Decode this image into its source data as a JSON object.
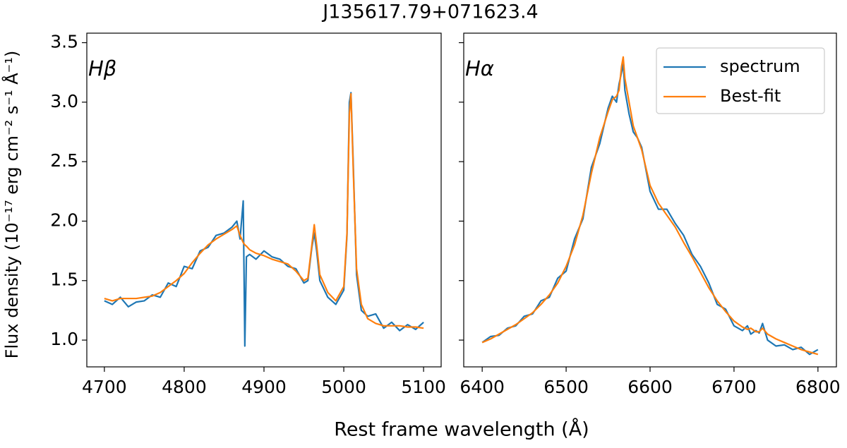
{
  "title": "J135617.79+071623.4",
  "x_label": "Rest frame wavelength (Å)",
  "y_label": "Flux density (10⁻¹⁷ erg cm⁻² s⁻¹ Å⁻¹)",
  "chart_data": [
    {
      "type": "line",
      "annotation": "Hβ",
      "x": [
        4700,
        4710,
        4720,
        4730,
        4740,
        4750,
        4760,
        4770,
        4780,
        4790,
        4800,
        4810,
        4820,
        4830,
        4840,
        4850,
        4860,
        4866,
        4870,
        4874,
        4876,
        4878,
        4882,
        4890,
        4900,
        4910,
        4920,
        4930,
        4940,
        4950,
        4955,
        4960,
        4963,
        4966,
        4970,
        4980,
        4990,
        5000,
        5004,
        5007,
        5009,
        5012,
        5016,
        5022,
        5030,
        5040,
        5050,
        5060,
        5070,
        5080,
        5090,
        5100
      ],
      "series": [
        {
          "name": "spectrum",
          "color": "#1f77b4",
          "values": [
            1.33,
            1.3,
            1.36,
            1.28,
            1.32,
            1.33,
            1.38,
            1.36,
            1.48,
            1.45,
            1.62,
            1.6,
            1.75,
            1.78,
            1.88,
            1.9,
            1.95,
            2.0,
            1.85,
            2.17,
            0.95,
            1.7,
            1.72,
            1.68,
            1.75,
            1.7,
            1.68,
            1.62,
            1.6,
            1.48,
            1.5,
            1.78,
            1.9,
            1.75,
            1.5,
            1.36,
            1.3,
            1.42,
            1.88,
            3.0,
            3.08,
            2.45,
            1.55,
            1.25,
            1.2,
            1.22,
            1.1,
            1.15,
            1.08,
            1.13,
            1.09,
            1.15
          ]
        },
        {
          "name": "Best-fit",
          "color": "#ff7f0e",
          "values": [
            1.35,
            1.33,
            1.35,
            1.35,
            1.35,
            1.36,
            1.37,
            1.4,
            1.45,
            1.5,
            1.56,
            1.65,
            1.73,
            1.8,
            1.85,
            1.89,
            1.93,
            1.96,
            1.88,
            1.82,
            1.8,
            1.79,
            1.76,
            1.73,
            1.71,
            1.68,
            1.66,
            1.64,
            1.58,
            1.5,
            1.52,
            1.8,
            1.97,
            1.8,
            1.55,
            1.4,
            1.33,
            1.45,
            1.9,
            2.9,
            3.07,
            2.4,
            1.6,
            1.3,
            1.18,
            1.14,
            1.12,
            1.12,
            1.12,
            1.11,
            1.11,
            1.1
          ]
        }
      ],
      "xlim": [
        4678,
        5122
      ],
      "xticks": [
        4700,
        4800,
        4900,
        5000,
        5100
      ],
      "ylim": [
        0.775,
        3.58
      ],
      "yticks": [
        {
          "value": 1,
          "label": "1.0"
        },
        1.5,
        {
          "value": 2,
          "label": "2.0"
        },
        2.5,
        {
          "value": 3,
          "label": "3.0"
        },
        3.5
      ]
    },
    {
      "type": "line",
      "annotation": "Hα",
      "legend": "upper right",
      "x": [
        6400,
        6410,
        6420,
        6430,
        6440,
        6450,
        6460,
        6470,
        6480,
        6490,
        6500,
        6510,
        6520,
        6530,
        6540,
        6550,
        6555,
        6560,
        6563,
        6566,
        6568,
        6570,
        6575,
        6580,
        6585,
        6590,
        6600,
        6610,
        6620,
        6630,
        6640,
        6650,
        6660,
        6670,
        6680,
        6690,
        6700,
        6710,
        6716,
        6720,
        6726,
        6730,
        6734,
        6740,
        6750,
        6760,
        6770,
        6780,
        6790,
        6800
      ],
      "series": [
        {
          "name": "spectrum",
          "color": "#1f77b4",
          "values": [
            0.98,
            1.03,
            1.04,
            1.1,
            1.12,
            1.2,
            1.22,
            1.33,
            1.36,
            1.52,
            1.58,
            1.85,
            2.02,
            2.45,
            2.65,
            2.95,
            3.05,
            3.0,
            3.15,
            3.25,
            3.32,
            3.1,
            2.9,
            2.75,
            2.7,
            2.62,
            2.25,
            2.1,
            2.1,
            1.98,
            1.88,
            1.72,
            1.62,
            1.48,
            1.3,
            1.26,
            1.12,
            1.08,
            1.12,
            1.05,
            1.08,
            1.06,
            1.14,
            1.0,
            0.95,
            0.96,
            0.92,
            0.94,
            0.88,
            0.92
          ]
        },
        {
          "name": "Best-fit",
          "color": "#ff7f0e",
          "values": [
            0.98,
            1.01,
            1.05,
            1.09,
            1.13,
            1.18,
            1.23,
            1.3,
            1.38,
            1.48,
            1.62,
            1.8,
            2.05,
            2.4,
            2.7,
            2.92,
            3.02,
            3.05,
            3.1,
            3.3,
            3.38,
            3.2,
            3.0,
            2.8,
            2.7,
            2.6,
            2.3,
            2.15,
            2.05,
            1.95,
            1.82,
            1.7,
            1.57,
            1.44,
            1.33,
            1.24,
            1.16,
            1.11,
            1.09,
            1.1,
            1.07,
            1.07,
            1.1,
            1.05,
            1.01,
            0.98,
            0.95,
            0.92,
            0.9,
            0.88
          ]
        }
      ],
      "xlim": [
        6378,
        6822
      ],
      "xticks": [
        6400,
        6500,
        6600,
        6700,
        6800
      ],
      "ylim": [
        0.775,
        3.58
      ]
    }
  ]
}
